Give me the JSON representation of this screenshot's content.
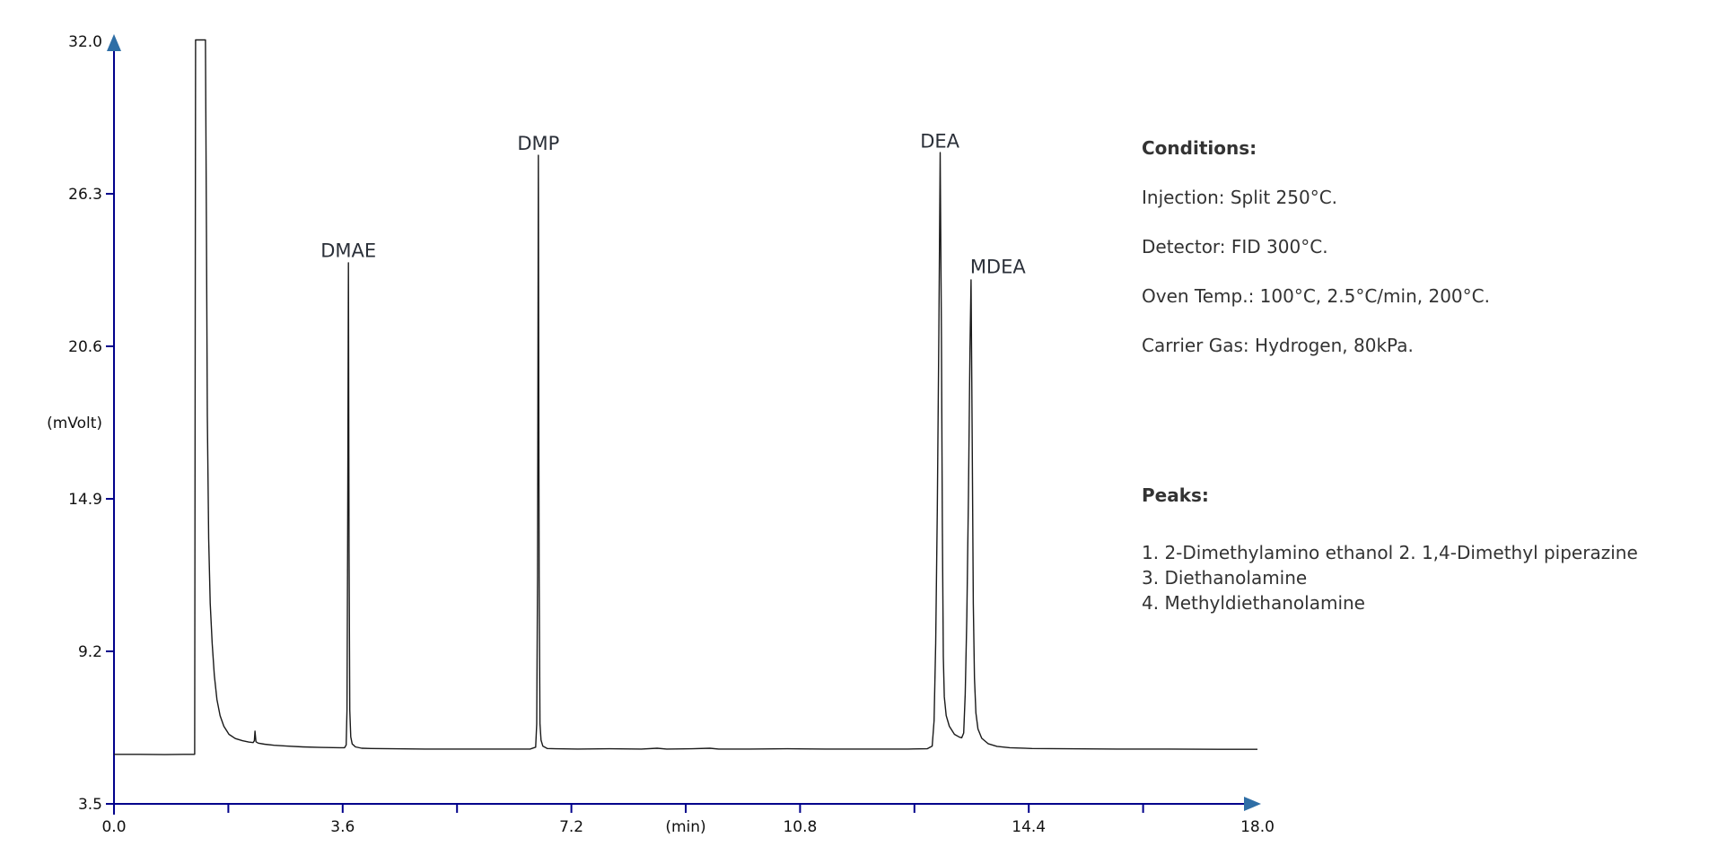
{
  "page": {
    "background": "#ffffff"
  },
  "chart_data": {
    "type": "line",
    "title": "",
    "xlabel": "(min)",
    "ylabel": "(mVolt)",
    "xlim": [
      0.0,
      18.0
    ],
    "ylim": [
      3.5,
      32.0
    ],
    "grid": false,
    "axis_color": "#00008b",
    "arrow_color": "#2e6ea6",
    "trace_color": "#1a1a1a",
    "x_tick_values": [
      0.0,
      3.6,
      7.2,
      10.8,
      14.4,
      18.0
    ],
    "x_tick_labels": [
      "0.0",
      "3.6",
      "7.2",
      "10.8",
      "14.4",
      "18.0"
    ],
    "x_tick_marks": [
      1.8,
      3.6,
      5.4,
      7.2,
      9.0,
      10.8,
      12.6,
      14.4,
      16.2
    ],
    "y_tick_values": [
      3.5,
      9.2,
      14.9,
      20.6,
      26.3,
      32.0
    ],
    "y_tick_labels": [
      "3.5",
      "9.2",
      "14.9",
      "20.6",
      "26.3",
      "32.0"
    ],
    "solvent_front": {
      "rt_min": 1.29,
      "apex_mv": 32.05,
      "clipped_at_top": true
    },
    "peaks": [
      {
        "label": "DMAE",
        "rt_min": 3.69,
        "apex_mv": 23.7,
        "label_dx": 0
      },
      {
        "label": "DMP",
        "rt_min": 6.68,
        "apex_mv": 27.7,
        "label_dx": 0
      },
      {
        "label": "DEA",
        "rt_min": 13.0,
        "apex_mv": 27.8,
        "label_dx": 0
      },
      {
        "label": "MDEA",
        "rt_min": 13.49,
        "apex_mv": 23.1,
        "label_dx": 30
      }
    ],
    "trace": [
      [
        0.0,
        5.35
      ],
      [
        0.4,
        5.35
      ],
      [
        0.8,
        5.34
      ],
      [
        1.1,
        5.35
      ],
      [
        1.27,
        5.35
      ],
      [
        1.285,
        32.05
      ],
      [
        1.44,
        32.05
      ],
      [
        1.455,
        25.0
      ],
      [
        1.47,
        18.0
      ],
      [
        1.49,
        13.4
      ],
      [
        1.515,
        11.0
      ],
      [
        1.545,
        9.5
      ],
      [
        1.58,
        8.3
      ],
      [
        1.62,
        7.4
      ],
      [
        1.67,
        6.8
      ],
      [
        1.73,
        6.4
      ],
      [
        1.81,
        6.1
      ],
      [
        1.91,
        5.94
      ],
      [
        2.02,
        5.86
      ],
      [
        2.12,
        5.81
      ],
      [
        2.19,
        5.79
      ],
      [
        2.21,
        5.86
      ],
      [
        2.22,
        6.22
      ],
      [
        2.235,
        5.82
      ],
      [
        2.27,
        5.77
      ],
      [
        2.37,
        5.73
      ],
      [
        2.52,
        5.69
      ],
      [
        2.72,
        5.66
      ],
      [
        2.97,
        5.63
      ],
      [
        3.25,
        5.61
      ],
      [
        3.55,
        5.6
      ],
      [
        3.63,
        5.6
      ],
      [
        3.655,
        5.7
      ],
      [
        3.668,
        7.0
      ],
      [
        3.678,
        13.0
      ],
      [
        3.69,
        23.72
      ],
      [
        3.7,
        13.0
      ],
      [
        3.712,
        7.0
      ],
      [
        3.727,
        6.0
      ],
      [
        3.75,
        5.74
      ],
      [
        3.8,
        5.63
      ],
      [
        3.9,
        5.58
      ],
      [
        4.05,
        5.57
      ],
      [
        4.4,
        5.56
      ],
      [
        4.9,
        5.55
      ],
      [
        5.5,
        5.55
      ],
      [
        6.1,
        5.55
      ],
      [
        6.55,
        5.55
      ],
      [
        6.638,
        5.62
      ],
      [
        6.655,
        6.5
      ],
      [
        6.667,
        12.0
      ],
      [
        6.68,
        27.74
      ],
      [
        6.693,
        12.0
      ],
      [
        6.705,
        6.5
      ],
      [
        6.722,
        5.88
      ],
      [
        6.75,
        5.66
      ],
      [
        6.82,
        5.57
      ],
      [
        6.95,
        5.56
      ],
      [
        7.3,
        5.55
      ],
      [
        7.8,
        5.56
      ],
      [
        8.3,
        5.55
      ],
      [
        8.55,
        5.58
      ],
      [
        8.7,
        5.55
      ],
      [
        9.1,
        5.56
      ],
      [
        9.38,
        5.58
      ],
      [
        9.52,
        5.55
      ],
      [
        10.0,
        5.55
      ],
      [
        10.6,
        5.56
      ],
      [
        11.2,
        5.55
      ],
      [
        11.9,
        5.55
      ],
      [
        12.5,
        5.55
      ],
      [
        12.8,
        5.56
      ],
      [
        12.88,
        5.66
      ],
      [
        12.91,
        6.6
      ],
      [
        12.935,
        9.5
      ],
      [
        12.96,
        14.5
      ],
      [
        12.985,
        21.0
      ],
      [
        13.005,
        27.84
      ],
      [
        13.025,
        21.0
      ],
      [
        13.04,
        14.0
      ],
      [
        13.055,
        9.0
      ],
      [
        13.07,
        7.5
      ],
      [
        13.1,
        6.8
      ],
      [
        13.15,
        6.4
      ],
      [
        13.23,
        6.1
      ],
      [
        13.31,
        5.99
      ],
      [
        13.345,
        5.97
      ],
      [
        13.375,
        6.15
      ],
      [
        13.4,
        7.6
      ],
      [
        13.425,
        10.5
      ],
      [
        13.45,
        15.0
      ],
      [
        13.475,
        20.5
      ],
      [
        13.492,
        23.08
      ],
      [
        13.51,
        17.0
      ],
      [
        13.527,
        11.0
      ],
      [
        13.545,
        8.2
      ],
      [
        13.568,
        6.9
      ],
      [
        13.6,
        6.3
      ],
      [
        13.66,
        5.95
      ],
      [
        13.76,
        5.75
      ],
      [
        13.9,
        5.65
      ],
      [
        14.1,
        5.6
      ],
      [
        14.45,
        5.57
      ],
      [
        15.0,
        5.56
      ],
      [
        15.8,
        5.55
      ],
      [
        16.6,
        5.55
      ],
      [
        17.4,
        5.54
      ],
      [
        18.0,
        5.54
      ]
    ]
  },
  "annotations": {
    "conditions": {
      "title": "Conditions:",
      "lines": [
        "Injection: Split 250°C.",
        "Detector: FID 300°C.",
        "Oven Temp.: 100°C, 2.5°C/min, 200°C.",
        "Carrier Gas: Hydrogen, 80kPa."
      ]
    },
    "peaks_list": {
      "title": "Peaks:",
      "lines": [
        "1. 2-Dimethylamino ethanol 2. 1,4-Dimethyl piperazine",
        "3. Diethanolamine",
        "4. Methyldiethanolamine"
      ]
    }
  }
}
